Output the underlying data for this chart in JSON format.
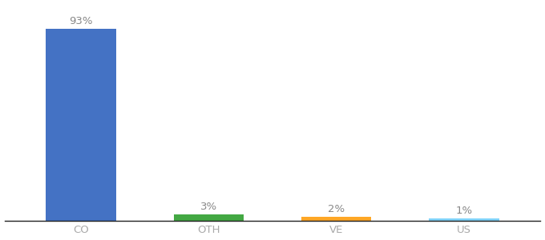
{
  "categories": [
    "CO",
    "OTH",
    "VE",
    "US"
  ],
  "values": [
    93,
    3,
    2,
    1
  ],
  "bar_colors": [
    "#4472c4",
    "#43a843",
    "#ffa726",
    "#81d4fa"
  ],
  "labels": [
    "93%",
    "3%",
    "2%",
    "1%"
  ],
  "ylim": [
    0,
    105
  ],
  "background_color": "#ffffff",
  "label_fontsize": 9.5,
  "tick_fontsize": 9.5,
  "bar_width": 0.55,
  "tick_color": "#aaaaaa",
  "spine_color": "#222222"
}
